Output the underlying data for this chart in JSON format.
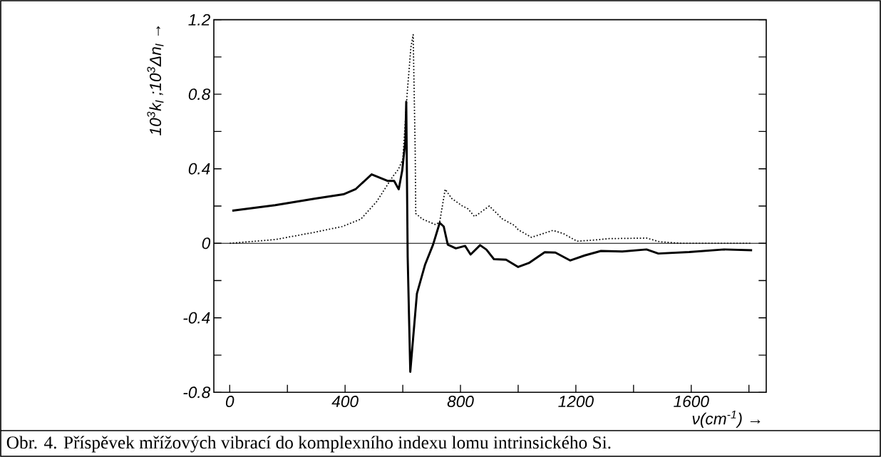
{
  "chart_data": {
    "type": "line",
    "xlabel": "ν(cm$^{-1}$) →",
    "ylabel": "10$^{3}$k$_{l}$ ;10$^{3}$Δn$_{l}$ →",
    "annotations": [
      "Obr. 4. Příspěvek mřížových vibrací do komplexního indexu lomu intrinsického Si."
    ],
    "xlim": [
      -55,
      1860
    ],
    "ylim": [
      -0.8,
      1.2
    ],
    "xticks": [
      0,
      {
        "value": 200,
        "label": null
      },
      400,
      {
        "value": 600,
        "label": null
      },
      800,
      {
        "value": 1000,
        "label": null
      },
      1200,
      {
        "value": 1400,
        "label": null
      },
      1600,
      {
        "value": 1800,
        "label": null
      }
    ],
    "yticks": [
      -0.8,
      {
        "value": -0.6,
        "label": null
      },
      -0.4,
      {
        "value": -0.2,
        "label": null
      },
      0,
      {
        "value": 0.2,
        "label": null
      },
      0.4,
      {
        "value": 0.6,
        "label": null
      },
      0.8,
      {
        "value": 1.0,
        "label": null
      },
      1.2
    ],
    "ref_lines": [
      {
        "axis": "y",
        "value": 0,
        "color": "#000000"
      }
    ],
    "series": [
      {
        "color": "#000000",
        "line_style": "solid",
        "x": [
          9,
          158,
          297,
          394,
          436,
          492,
          547,
          570,
          586,
          598,
          609,
          612,
          617,
          626,
          649,
          677,
          705,
          728,
          742,
          756,
          784,
          816,
          835,
          868,
          890,
          916,
          958,
          1000,
          1037,
          1092,
          1129,
          1180,
          1231,
          1287,
          1361,
          1445,
          1486,
          1593,
          1714,
          1811
        ],
        "values": [
          0.175,
          0.205,
          0.24,
          0.263,
          0.29,
          0.37,
          0.335,
          0.335,
          0.29,
          0.39,
          0.55,
          0.76,
          -0.075,
          -0.69,
          -0.27,
          -0.116,
          -0.007,
          0.11,
          0.09,
          -0.007,
          -0.027,
          -0.014,
          -0.06,
          -0.01,
          -0.034,
          -0.085,
          -0.088,
          -0.127,
          -0.106,
          -0.048,
          -0.05,
          -0.092,
          -0.065,
          -0.041,
          -0.044,
          -0.033,
          -0.055,
          -0.047,
          -0.033,
          -0.037
        ]
      },
      {
        "color": "#000000",
        "line_style": "dotted",
        "x": [
          0,
          158,
          297,
          390,
          455,
          510,
          566,
          584,
          600,
          615,
          628,
          636,
          643,
          645,
          668,
          714,
          728,
          747,
          770,
          807,
          826,
          849,
          900,
          946,
          988,
          1000,
          1046,
          1120,
          1157,
          1204,
          1268,
          1315,
          1445,
          1491,
          1565,
          1806
        ],
        "values": [
          0,
          0.02,
          0.06,
          0.09,
          0.13,
          0.225,
          0.36,
          0.395,
          0.45,
          0.8,
          1.05,
          1.12,
          0.5,
          0.16,
          0.13,
          0.1,
          0.115,
          0.29,
          0.24,
          0.2,
          0.185,
          0.143,
          0.2,
          0.13,
          0.095,
          0.073,
          0.032,
          0.069,
          0.052,
          0.011,
          0.018,
          0.025,
          0.028,
          0.008,
          0,
          0
        ]
      }
    ]
  }
}
